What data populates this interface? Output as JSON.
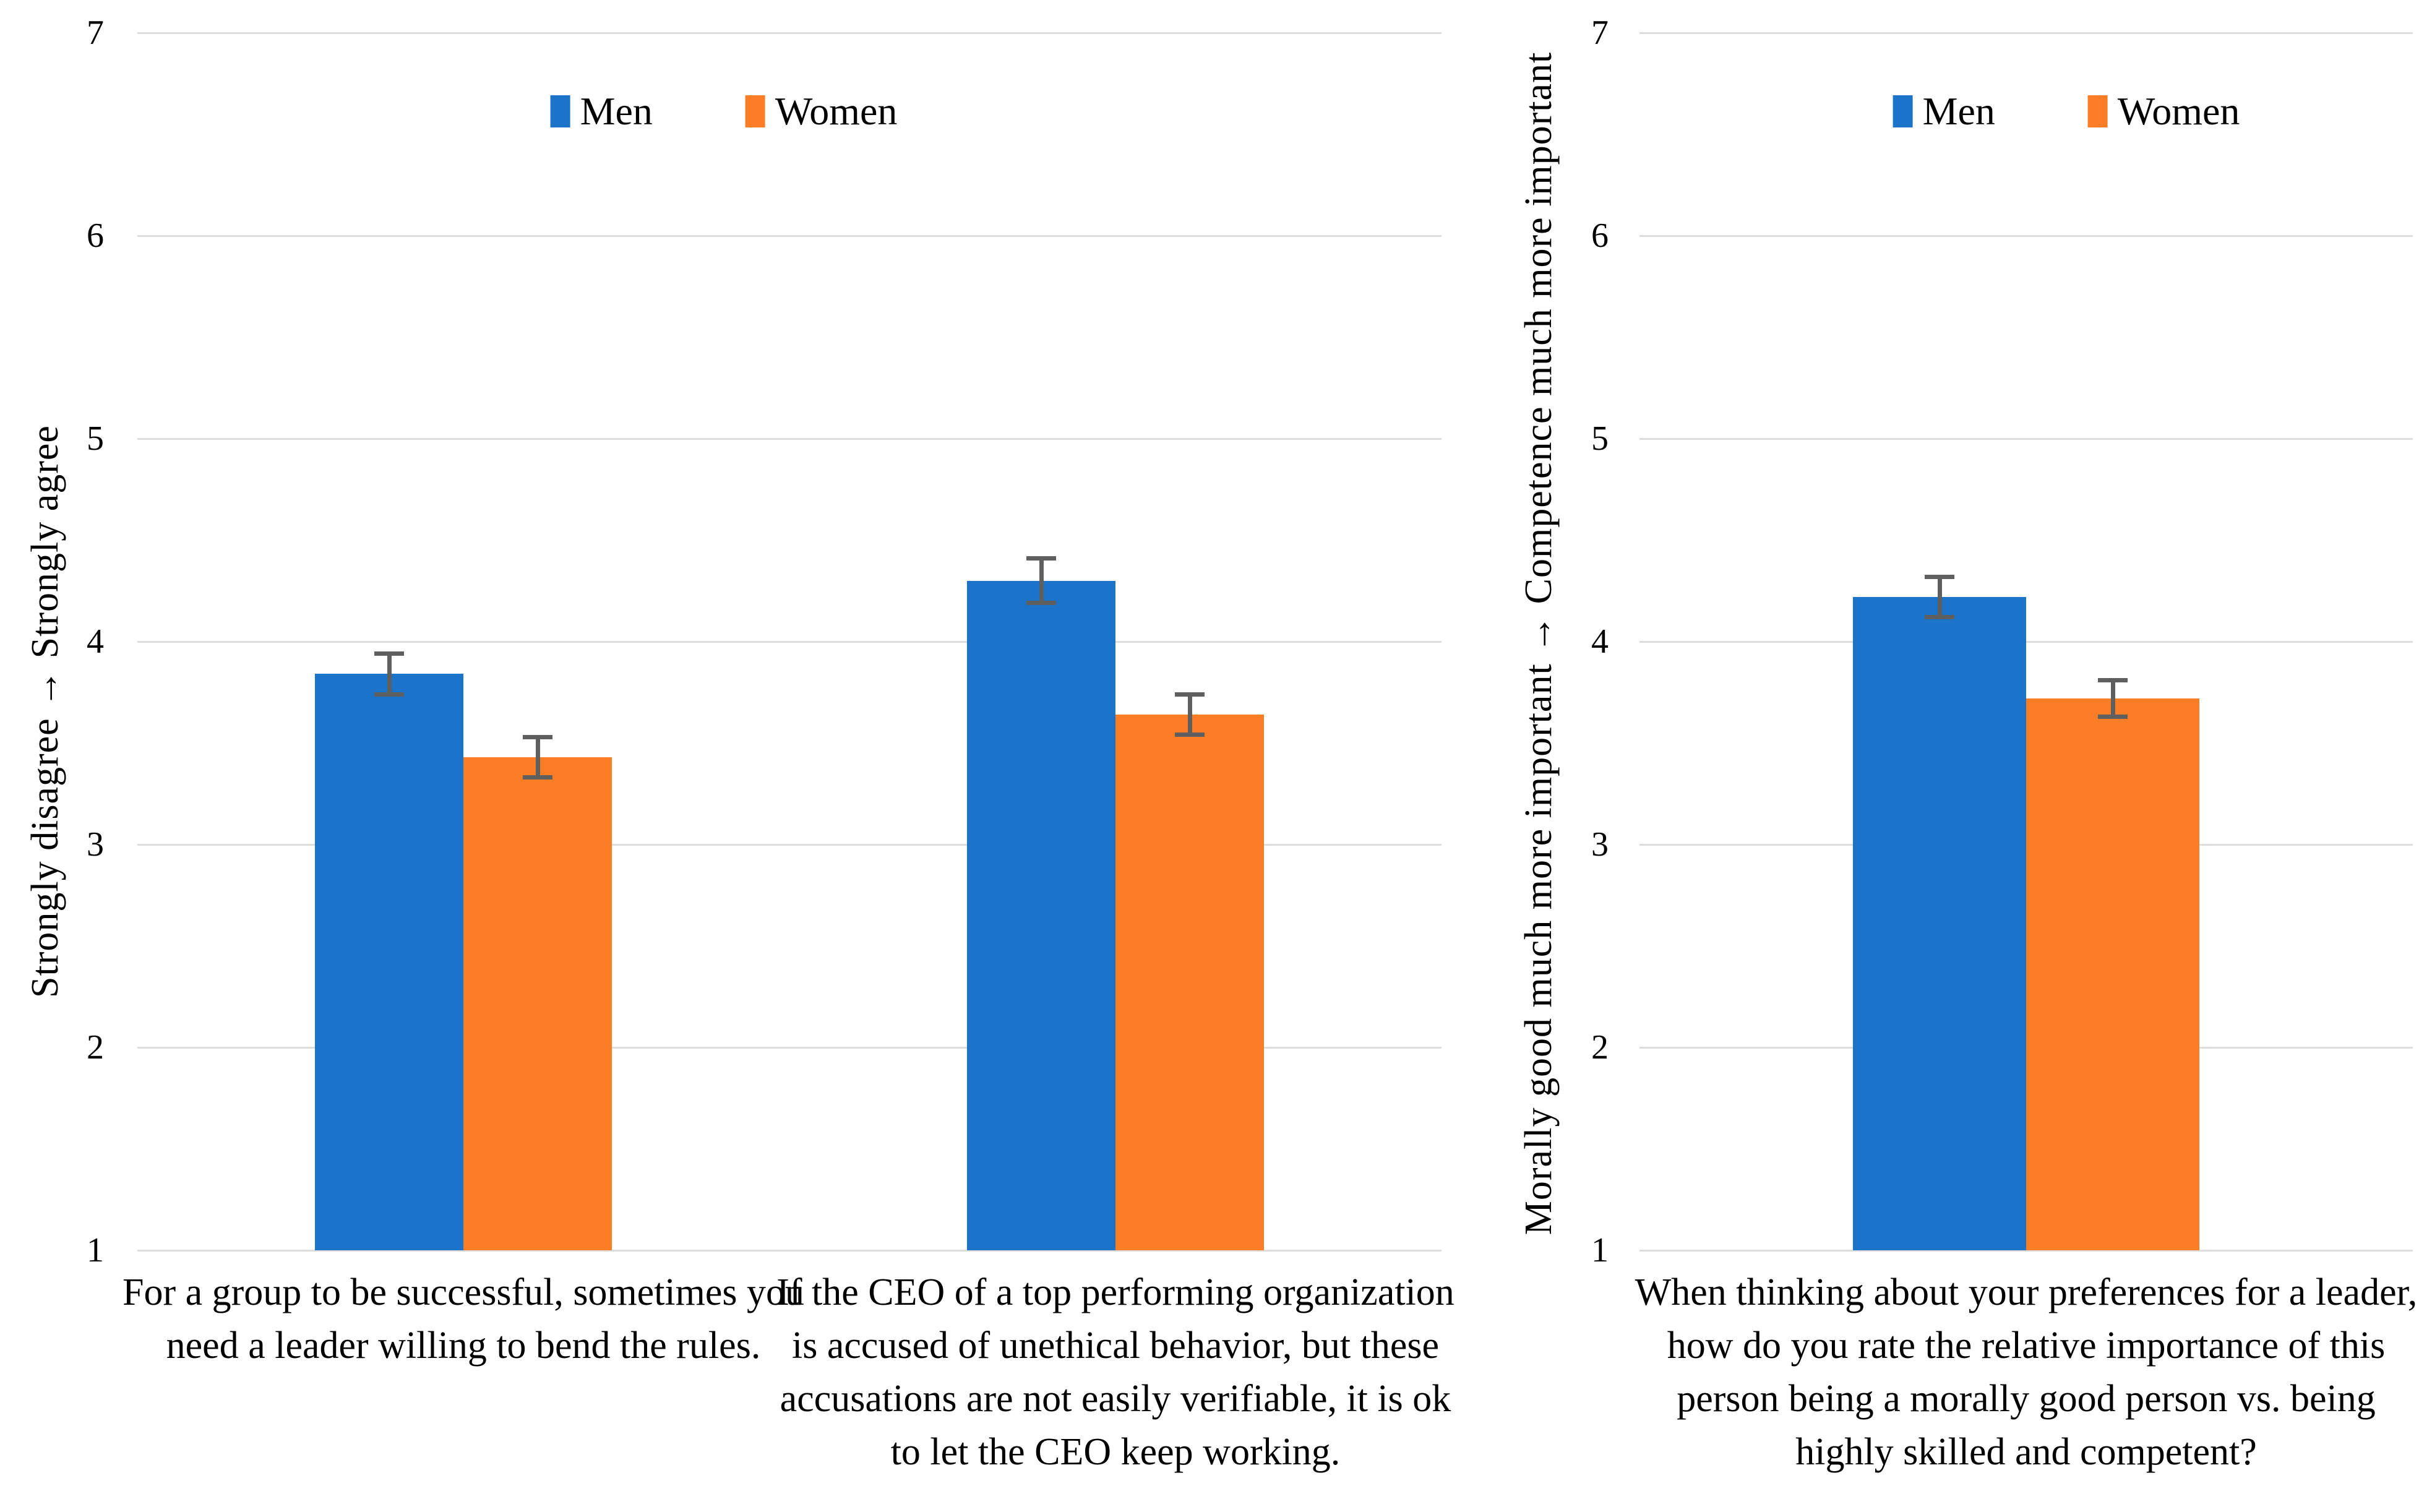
{
  "legend": {
    "men_label": "Men",
    "women_label": "Women"
  },
  "colors": {
    "men": "#1B74CA",
    "women": "#FB7D26",
    "error_bar": "#5F5F5F",
    "gridline": "#DDDDDD"
  },
  "chart_data": [
    {
      "type": "bar",
      "title": "",
      "y_axis_title": "Strongly disagree → Strongly agree",
      "xlabel": "",
      "ylim": [
        1,
        7
      ],
      "yticks": [
        1,
        2,
        3,
        4,
        5,
        6,
        7
      ],
      "grid": true,
      "legend_position": "top",
      "legend_entries": [
        "Men",
        "Women"
      ],
      "categories": [
        "For a group to be successful, sometimes you need a leader willing to bend the rules.",
        "If the CEO of a top performing organization is accused of unethical behavior, but these accusations are not easily verifiable, it is ok to let the CEO keep working."
      ],
      "series": [
        {
          "name": "Men",
          "color": "#1B74CA",
          "values": [
            3.84,
            4.3
          ],
          "errors": [
            0.1,
            0.11
          ]
        },
        {
          "name": "Women",
          "color": "#FB7D26",
          "values": [
            3.43,
            3.64
          ],
          "errors": [
            0.1,
            0.1
          ]
        }
      ]
    },
    {
      "type": "bar",
      "title": "",
      "y_axis_title": "Morally good much more important → Competence much more important",
      "xlabel": "",
      "ylim": [
        1,
        7
      ],
      "yticks": [
        1,
        2,
        3,
        4,
        5,
        6,
        7
      ],
      "grid": true,
      "legend_position": "top",
      "legend_entries": [
        "Men",
        "Women"
      ],
      "categories": [
        "When thinking about your preferences for a leader, how do you rate the relative importance of this person being a morally good person vs. being highly skilled and competent?"
      ],
      "series": [
        {
          "name": "Men",
          "color": "#1B74CA",
          "values": [
            4.22
          ],
          "errors": [
            0.1
          ]
        },
        {
          "name": "Women",
          "color": "#FB7D26",
          "values": [
            3.72
          ],
          "errors": [
            0.09
          ]
        }
      ]
    }
  ]
}
